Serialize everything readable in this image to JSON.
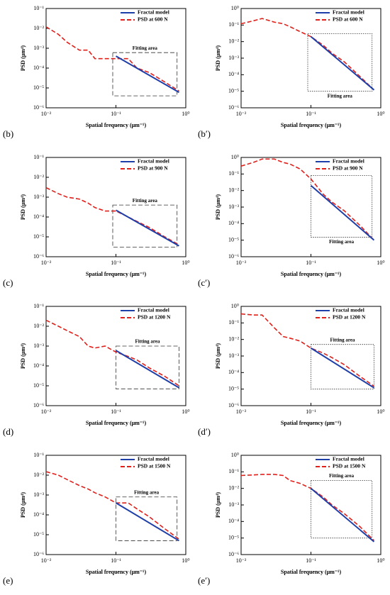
{
  "chart_data": [
    {
      "type": "line",
      "panel": "(b)",
      "xlabel": "Spatial frequency (μm⁻¹)",
      "ylabel": "PSD (μm⁴)",
      "xscale": "log",
      "yscale": "log",
      "xlim": [
        0.01,
        1
      ],
      "xticks": [
        {
          "value": 0.01,
          "label": "10⁻²"
        },
        {
          "value": 0.1,
          "label": "10⁻¹"
        },
        {
          "value": 1,
          "label": "10⁰"
        }
      ],
      "ylim": [
        1e-06,
        0.1
      ],
      "yticks": [
        {
          "value": 1e-06,
          "label": "10⁻⁶"
        },
        {
          "value": 1e-05,
          "label": "10⁻⁵"
        },
        {
          "value": 0.0001,
          "label": "10⁻⁴"
        },
        {
          "value": 0.001,
          "label": "10⁻³"
        },
        {
          "value": 0.01,
          "label": "10⁻²"
        },
        {
          "value": 0.1,
          "label": "10⁻¹"
        }
      ],
      "legend": "upper right",
      "annotation": "Fitting area",
      "annotation_position": "top",
      "box_style": "dashed",
      "fitting_box": {
        "x": [
          0.09,
          0.75
        ],
        "y": [
          4e-06,
          0.0006
        ]
      },
      "series": [
        {
          "name": "Fractal model",
          "color": "#1f3fa8",
          "style": "solid",
          "x": [
            0.1,
            0.8
          ],
          "values": [
            0.0004,
            6e-06
          ]
        },
        {
          "name": "PSD at 600 N",
          "color": "#e0201b",
          "style": "dashed",
          "x": [
            0.01,
            0.015,
            0.02,
            0.03,
            0.04,
            0.05,
            0.07,
            0.1,
            0.15,
            0.2,
            0.3,
            0.5,
            0.8
          ],
          "values": [
            0.012,
            0.005,
            0.002,
            0.0008,
            0.0008,
            0.0003,
            0.0003,
            0.0003,
            0.0003,
            0.0001,
            6e-05,
            2e-05,
            7e-06
          ]
        }
      ]
    },
    {
      "type": "line",
      "panel": "(b′)",
      "xlabel": "Spatial frequency (μm⁻¹)",
      "ylabel": "PSD (μm⁴)",
      "xscale": "log",
      "yscale": "log",
      "xlim": [
        0.01,
        1
      ],
      "xticks": [
        {
          "value": 0.01,
          "label": "10⁻²"
        },
        {
          "value": 0.1,
          "label": "10⁻¹"
        },
        {
          "value": 1,
          "label": "10⁰"
        }
      ],
      "ylim": [
        1e-06,
        1
      ],
      "yticks": [
        {
          "value": 1e-06,
          "label": "10⁻⁶"
        },
        {
          "value": 1e-05,
          "label": "10⁻⁵"
        },
        {
          "value": 0.0001,
          "label": "10⁻⁴"
        },
        {
          "value": 0.001,
          "label": "10⁻³"
        },
        {
          "value": 0.01,
          "label": "10⁻²"
        },
        {
          "value": 0.1,
          "label": "10⁻¹"
        },
        {
          "value": 1,
          "label": "10⁰"
        }
      ],
      "legend": "upper right",
      "annotation": "Fitting area",
      "annotation_position": "bottom",
      "box_style": "dotted",
      "fitting_box": {
        "x": [
          0.09,
          0.75
        ],
        "y": [
          1e-05,
          0.03
        ]
      },
      "series": [
        {
          "name": "Fractal model",
          "color": "#1f3fa8",
          "style": "solid",
          "x": [
            0.1,
            0.8
          ],
          "values": [
            0.02,
            1.2e-05
          ]
        },
        {
          "name": "PSD at 600 N",
          "color": "#e0201b",
          "style": "dashed",
          "x": [
            0.01,
            0.015,
            0.02,
            0.03,
            0.04,
            0.05,
            0.07,
            0.1,
            0.15,
            0.2,
            0.3,
            0.5,
            0.8
          ],
          "values": [
            0.12,
            0.18,
            0.25,
            0.15,
            0.12,
            0.08,
            0.04,
            0.02,
            0.006,
            0.002,
            0.0006,
            8e-05,
            1.2e-05
          ]
        }
      ]
    },
    {
      "type": "line",
      "panel": "(c)",
      "xlabel": "Spatial frequency (μm⁻¹)",
      "ylabel": "PSD (μm⁴)",
      "xscale": "log",
      "yscale": "log",
      "xlim": [
        0.01,
        1
      ],
      "xticks": [
        {
          "value": 0.01,
          "label": "10⁻²"
        },
        {
          "value": 0.1,
          "label": "10⁻¹"
        },
        {
          "value": 1,
          "label": "10⁰"
        }
      ],
      "ylim": [
        1e-06,
        0.1
      ],
      "yticks": [
        {
          "value": 1e-06,
          "label": "10⁻⁶"
        },
        {
          "value": 1e-05,
          "label": "10⁻⁵"
        },
        {
          "value": 0.0001,
          "label": "10⁻⁴"
        },
        {
          "value": 0.001,
          "label": "10⁻³"
        },
        {
          "value": 0.01,
          "label": "10⁻²"
        },
        {
          "value": 0.1,
          "label": "10⁻¹"
        }
      ],
      "legend": "upper right",
      "annotation": "Fitting area",
      "annotation_position": "top",
      "box_style": "dashed",
      "fitting_box": {
        "x": [
          0.09,
          0.75
        ],
        "y": [
          3e-06,
          0.0004
        ]
      },
      "series": [
        {
          "name": "Fractal model",
          "color": "#1f3fa8",
          "style": "solid",
          "x": [
            0.1,
            0.8
          ],
          "values": [
            0.00022,
            3.5e-06
          ]
        },
        {
          "name": "PSD at 900 N",
          "color": "#e0201b",
          "style": "dashed",
          "x": [
            0.01,
            0.015,
            0.02,
            0.03,
            0.04,
            0.05,
            0.07,
            0.1,
            0.15,
            0.2,
            0.3,
            0.5,
            0.8
          ],
          "values": [
            0.003,
            0.0015,
            0.001,
            0.0008,
            0.0005,
            0.0003,
            0.0002,
            0.0002,
            0.0001,
            6e-05,
            3e-05,
            1e-05,
            4e-06
          ]
        }
      ]
    },
    {
      "type": "line",
      "panel": "(c′)",
      "xlabel": "Spatial frequency (μm⁻¹)",
      "ylabel": "PSD (μm⁴)",
      "xscale": "log",
      "yscale": "log",
      "xlim": [
        0.01,
        1
      ],
      "xticks": [
        {
          "value": 0.01,
          "label": "10⁻²"
        },
        {
          "value": 0.1,
          "label": "10⁻¹"
        },
        {
          "value": 1,
          "label": "10⁰"
        }
      ],
      "ylim": [
        1e-06,
        1
      ],
      "yticks": [
        {
          "value": 1e-06,
          "label": "10⁻⁶"
        },
        {
          "value": 1e-05,
          "label": "10⁻⁵"
        },
        {
          "value": 0.0001,
          "label": "10⁻⁴"
        },
        {
          "value": 0.001,
          "label": "10⁻³"
        },
        {
          "value": 0.01,
          "label": "10⁻²"
        },
        {
          "value": 0.1,
          "label": "10⁻¹"
        },
        {
          "value": 1,
          "label": "10⁰"
        }
      ],
      "legend": "upper right",
      "annotation": "Fitting area",
      "annotation_position": "bottom",
      "box_style": "dotted",
      "fitting_box": {
        "x": [
          0.1,
          0.75
        ],
        "y": [
          1.5e-05,
          0.08
        ]
      },
      "series": [
        {
          "name": "Fractal model",
          "color": "#1f3fa8",
          "style": "solid",
          "x": [
            0.1,
            0.8
          ],
          "values": [
            0.02,
            1e-05
          ]
        },
        {
          "name": "PSD at 900 N",
          "color": "#e0201b",
          "style": "dashed",
          "x": [
            0.01,
            0.015,
            0.02,
            0.03,
            0.04,
            0.05,
            0.07,
            0.1,
            0.15,
            0.2,
            0.3,
            0.5,
            0.8
          ],
          "values": [
            0.3,
            0.5,
            0.8,
            0.8,
            0.5,
            0.4,
            0.2,
            0.05,
            0.006,
            0.002,
            0.0006,
            8e-05,
            1e-05
          ]
        }
      ]
    },
    {
      "type": "line",
      "panel": "(d)",
      "xlabel": "Spatial frequency (μm⁻¹)",
      "ylabel": "PSD (μm⁴)",
      "xscale": "log",
      "yscale": "log",
      "xlim": [
        0.01,
        1
      ],
      "xticks": [
        {
          "value": 0.01,
          "label": "10⁻²"
        },
        {
          "value": 0.1,
          "label": "10⁻¹"
        },
        {
          "value": 1,
          "label": "10⁰"
        }
      ],
      "ylim": [
        1e-06,
        0.1
      ],
      "yticks": [
        {
          "value": 1e-06,
          "label": "10⁻⁶"
        },
        {
          "value": 1e-05,
          "label": "10⁻⁵"
        },
        {
          "value": 0.0001,
          "label": "10⁻⁴"
        },
        {
          "value": 0.001,
          "label": "10⁻³"
        },
        {
          "value": 0.01,
          "label": "10⁻²"
        },
        {
          "value": 0.1,
          "label": "10⁻¹"
        }
      ],
      "legend": "upper right",
      "annotation": "Fitting area",
      "annotation_position": "top",
      "box_style": "dashed",
      "fitting_box": {
        "x": [
          0.1,
          0.8
        ],
        "y": [
          7e-06,
          0.001
        ]
      },
      "series": [
        {
          "name": "Fractal model",
          "color": "#1f3fa8",
          "style": "solid",
          "x": [
            0.1,
            0.8
          ],
          "values": [
            0.0006,
            8e-06
          ]
        },
        {
          "name": "PSD at 1200 N",
          "color": "#e0201b",
          "style": "dashed",
          "x": [
            0.01,
            0.015,
            0.02,
            0.03,
            0.04,
            0.05,
            0.07,
            0.1,
            0.15,
            0.2,
            0.3,
            0.5,
            0.8
          ],
          "values": [
            0.02,
            0.01,
            0.006,
            0.003,
            0.001,
            0.0008,
            0.001,
            0.0005,
            0.0003,
            0.0002,
            8e-05,
            3e-05,
            1e-05
          ]
        }
      ]
    },
    {
      "type": "line",
      "panel": "(d′)",
      "xlabel": "Spatial frequency (μm⁻¹)",
      "ylabel": "PSD (μm⁴)",
      "xscale": "log",
      "yscale": "log",
      "xlim": [
        0.01,
        1
      ],
      "xticks": [
        {
          "value": 0.01,
          "label": "10⁻²"
        },
        {
          "value": 0.1,
          "label": "10⁻¹"
        },
        {
          "value": 1,
          "label": "10⁰"
        }
      ],
      "ylim": [
        1e-06,
        1
      ],
      "yticks": [
        {
          "value": 1e-06,
          "label": "10⁻⁶"
        },
        {
          "value": 1e-05,
          "label": "10⁻⁵"
        },
        {
          "value": 0.0001,
          "label": "10⁻⁴"
        },
        {
          "value": 0.001,
          "label": "10⁻³"
        },
        {
          "value": 0.01,
          "label": "10⁻²"
        },
        {
          "value": 0.1,
          "label": "10⁻¹"
        },
        {
          "value": 1,
          "label": "10⁰"
        }
      ],
      "legend": "upper right",
      "annotation": "Fitting area",
      "annotation_position": "top",
      "box_style": "dotted",
      "fitting_box": {
        "x": [
          0.1,
          0.8
        ],
        "y": [
          1e-05,
          0.005
        ]
      },
      "series": [
        {
          "name": "Fractal model",
          "color": "#1f3fa8",
          "style": "solid",
          "x": [
            0.1,
            0.8
          ],
          "values": [
            0.003,
            1.2e-05
          ]
        },
        {
          "name": "PSD at 1200 N",
          "color": "#e0201b",
          "style": "dashed",
          "x": [
            0.01,
            0.015,
            0.02,
            0.03,
            0.04,
            0.05,
            0.07,
            0.1,
            0.15,
            0.2,
            0.3,
            0.5,
            0.8
          ],
          "values": [
            0.35,
            0.3,
            0.3,
            0.05,
            0.015,
            0.012,
            0.008,
            0.003,
            0.0015,
            0.0008,
            0.0003,
            6e-05,
            1.5e-05
          ]
        }
      ]
    },
    {
      "type": "line",
      "panel": "(e)",
      "xlabel": "Spatial frequency (μm⁻¹)",
      "ylabel": "PSD (μm⁴)",
      "xscale": "log",
      "yscale": "log",
      "xlim": [
        0.01,
        1
      ],
      "xticks": [
        {
          "value": 0.01,
          "label": "10⁻²"
        },
        {
          "value": 0.1,
          "label": "10⁻¹"
        },
        {
          "value": 1,
          "label": "10⁰"
        }
      ],
      "ylim": [
        1e-06,
        0.1
      ],
      "yticks": [
        {
          "value": 1e-06,
          "label": "10⁻⁶"
        },
        {
          "value": 1e-05,
          "label": "10⁻⁵"
        },
        {
          "value": 0.0001,
          "label": "10⁻⁴"
        },
        {
          "value": 0.001,
          "label": "10⁻³"
        },
        {
          "value": 0.01,
          "label": "10⁻²"
        },
        {
          "value": 0.1,
          "label": "10⁻¹"
        }
      ],
      "legend": "upper right",
      "annotation": "Fitting area",
      "annotation_position": "top",
      "box_style": "dashed",
      "fitting_box": {
        "x": [
          0.1,
          0.75
        ],
        "y": [
          5e-06,
          0.0008
        ]
      },
      "series": [
        {
          "name": "Fractal model",
          "color": "#1f3fa8",
          "style": "solid",
          "x": [
            0.1,
            0.8
          ],
          "values": [
            0.0004,
            5e-06
          ]
        },
        {
          "name": "PSD at 1500 N",
          "color": "#e0201b",
          "style": "dashed",
          "x": [
            0.01,
            0.015,
            0.02,
            0.03,
            0.04,
            0.05,
            0.07,
            0.1,
            0.15,
            0.2,
            0.3,
            0.5,
            0.8
          ],
          "values": [
            0.015,
            0.01,
            0.006,
            0.003,
            0.002,
            0.0013,
            0.0008,
            0.0004,
            0.0004,
            0.0002,
            8e-05,
            2e-05,
            6e-06
          ]
        }
      ]
    },
    {
      "type": "line",
      "panel": "(e′)",
      "xlabel": "Spatial frequency (μm⁻¹)",
      "ylabel": "PSD (μm⁴)",
      "xscale": "log",
      "yscale": "log",
      "xlim": [
        0.01,
        1
      ],
      "xticks": [
        {
          "value": 0.01,
          "label": "10⁻²"
        },
        {
          "value": 0.1,
          "label": "10⁻¹"
        },
        {
          "value": 1,
          "label": "10⁰"
        }
      ],
      "ylim": [
        1e-06,
        1
      ],
      "yticks": [
        {
          "value": 1e-06,
          "label": "10⁻⁶"
        },
        {
          "value": 1e-05,
          "label": "10⁻⁵"
        },
        {
          "value": 0.0001,
          "label": "10⁻⁴"
        },
        {
          "value": 0.001,
          "label": "10⁻³"
        },
        {
          "value": 0.01,
          "label": "10⁻²"
        },
        {
          "value": 0.1,
          "label": "10⁻¹"
        },
        {
          "value": 1,
          "label": "10⁰"
        }
      ],
      "legend": "upper right",
      "annotation": "Fitting area",
      "annotation_position": "top",
      "box_style": "dotted",
      "fitting_box": {
        "x": [
          0.1,
          0.75
        ],
        "y": [
          1e-05,
          0.03
        ]
      },
      "series": [
        {
          "name": "Fractal model",
          "color": "#1f3fa8",
          "style": "solid",
          "x": [
            0.1,
            0.8
          ],
          "values": [
            0.01,
            6e-06
          ]
        },
        {
          "name": "PSD at 1500 N",
          "color": "#e0201b",
          "style": "dashed",
          "x": [
            0.01,
            0.015,
            0.02,
            0.03,
            0.04,
            0.05,
            0.07,
            0.1,
            0.15,
            0.2,
            0.3,
            0.5,
            0.8
          ],
          "values": [
            0.06,
            0.065,
            0.07,
            0.07,
            0.06,
            0.03,
            0.02,
            0.01,
            0.003,
            0.001,
            0.0003,
            5e-05,
            7e-06
          ]
        }
      ]
    }
  ]
}
